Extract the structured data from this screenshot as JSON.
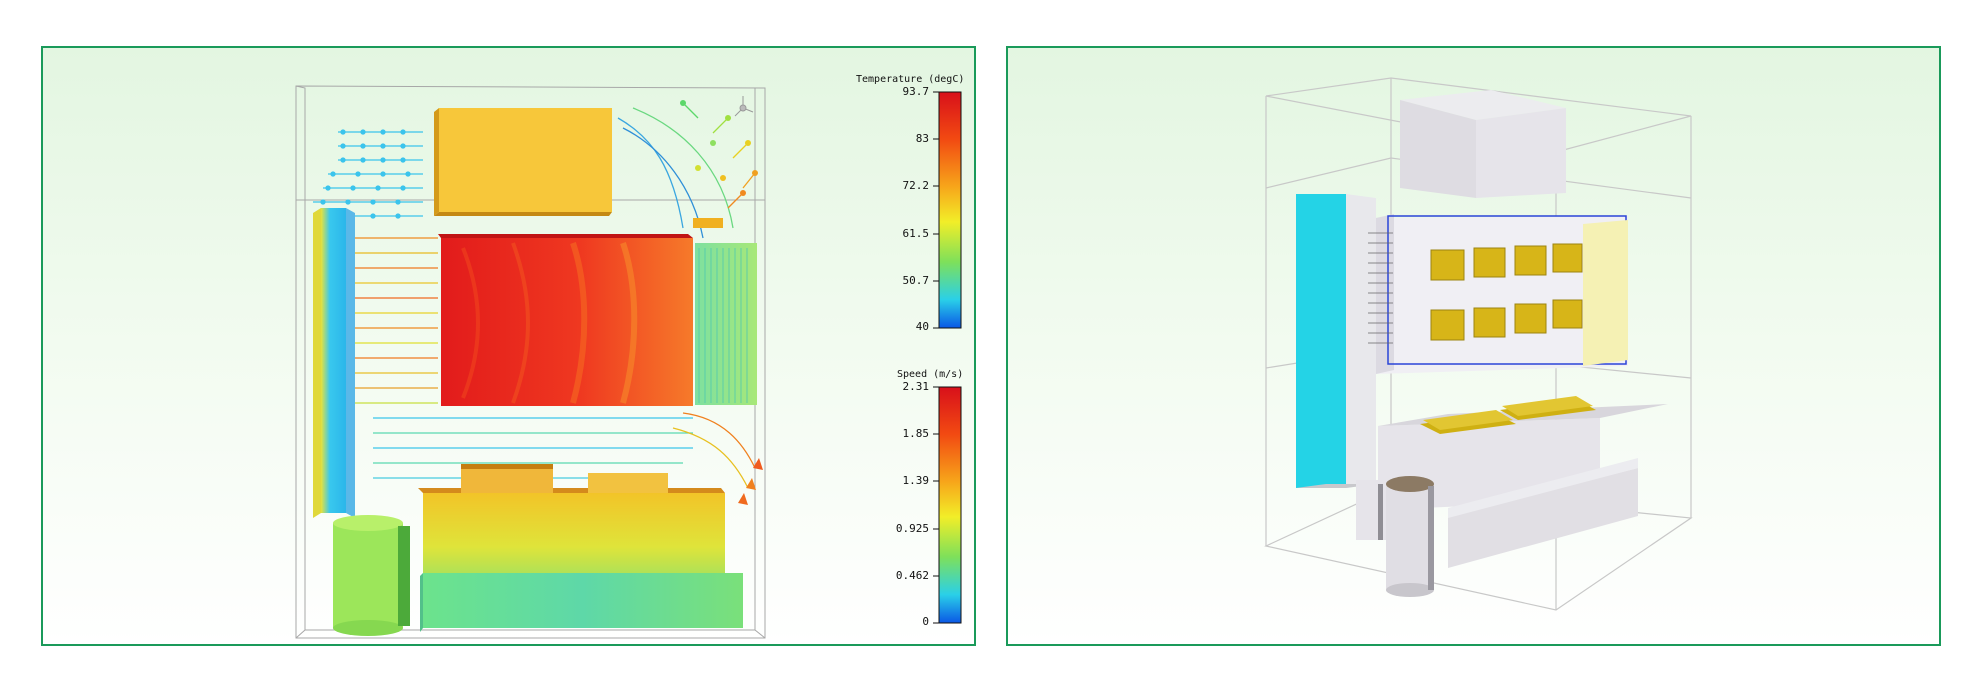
{
  "temperature_legend": {
    "title": "Temperature (degC)",
    "ticks": [
      "93.7",
      "83",
      "72.2",
      "61.5",
      "50.7",
      "40"
    ]
  },
  "speed_legend": {
    "title": "Speed (m/s)",
    "ticks": [
      "2.31",
      "1.85",
      "1.39",
      "0.925",
      "0.462",
      "0"
    ]
  },
  "colors": {
    "panel_border": "#1a9a5a",
    "hot": "#e8281e",
    "warm": "#f5a623",
    "cool": "#33c6f0",
    "component_grey": "#e4e2e6",
    "fan_cyan": "#22d4e6",
    "chip_gold": "#d4b21a"
  }
}
